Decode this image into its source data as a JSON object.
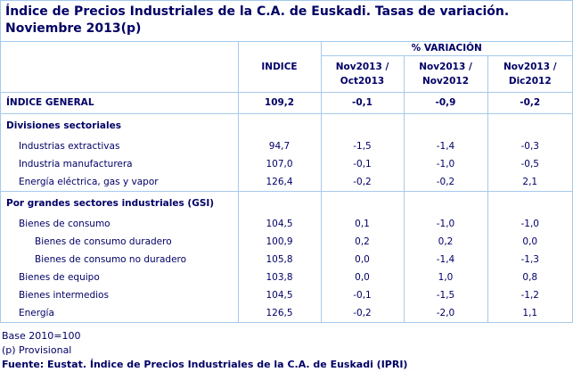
{
  "colors": {
    "text_navy": "#000066",
    "border_light_blue": "#a6c9ec",
    "background": "#ffffff"
  },
  "title_lines": [
    "Índice de Precios Industriales de la C.A. de Euskadi. Tasas de variación.",
    "Noviembre 2013(p)"
  ],
  "table": {
    "corner_label": "",
    "index_header": "INDICE",
    "variation_header": "% VARIACIÓN",
    "periods": [
      {
        "top": "Nov2013 /",
        "bottom": "Oct2013"
      },
      {
        "top": "Nov2013 /",
        "bottom": "Nov2012"
      },
      {
        "top": "Nov2013 /",
        "bottom": "Dic2012"
      }
    ],
    "rows": [
      {
        "label": "ÍNDICE GENERAL",
        "indent": 0,
        "style": "general",
        "separator_below": true,
        "values": [
          "109,2",
          "-0,1",
          "-0,9",
          "-0,2"
        ]
      },
      {
        "label": "Divisiones sectoriales",
        "indent": 0,
        "style": "section",
        "separator_below": false,
        "values": [
          "",
          "",
          "",
          ""
        ]
      },
      {
        "label": "Industrias extractivas",
        "indent": 1,
        "style": "item",
        "separator_below": false,
        "values": [
          "94,7",
          "-1,5",
          "-1,4",
          "-0,3"
        ]
      },
      {
        "label": "Industria manufacturera",
        "indent": 1,
        "style": "item",
        "separator_below": false,
        "values": [
          "107,0",
          "-0,1",
          "-1,0",
          "-0,5"
        ]
      },
      {
        "label": "Energía eléctrica, gas y vapor",
        "indent": 1,
        "style": "item",
        "separator_below": true,
        "values": [
          "126,4",
          "-0,2",
          "-0,2",
          "2,1"
        ]
      },
      {
        "label": "Por grandes sectores industriales (GSI)",
        "indent": 0,
        "style": "section",
        "separator_below": false,
        "values": [
          "",
          "",
          "",
          ""
        ]
      },
      {
        "label": "Bienes de consumo",
        "indent": 1,
        "style": "item",
        "separator_below": false,
        "values": [
          "104,5",
          "0,1",
          "-1,0",
          "-1,0"
        ]
      },
      {
        "label": "Bienes de consumo duradero",
        "indent": 2,
        "style": "item",
        "separator_below": false,
        "values": [
          "100,9",
          "0,2",
          "0,2",
          "0,0"
        ]
      },
      {
        "label": "Bienes de consumo no duradero",
        "indent": 2,
        "style": "item",
        "separator_below": false,
        "values": [
          "105,8",
          "0,0",
          "-1,4",
          "-1,3"
        ]
      },
      {
        "label": "Bienes de equipo",
        "indent": 1,
        "style": "item",
        "separator_below": false,
        "values": [
          "103,8",
          "0,0",
          "1,0",
          "0,8"
        ]
      },
      {
        "label": "Bienes intermedios",
        "indent": 1,
        "style": "item",
        "separator_below": false,
        "values": [
          "104,5",
          "-0,1",
          "-1,5",
          "-1,2"
        ]
      },
      {
        "label": "Energía",
        "indent": 1,
        "style": "item",
        "separator_below": false,
        "values": [
          "126,5",
          "-0,2",
          "-2,0",
          "1,1"
        ]
      }
    ]
  },
  "footnotes": {
    "base": "Base 2010=100",
    "provisional": "(p) Provisional",
    "source": "Fuente: Eustat. Índice de Precios Industriales de la C.A. de Euskadi (IPRI)"
  }
}
